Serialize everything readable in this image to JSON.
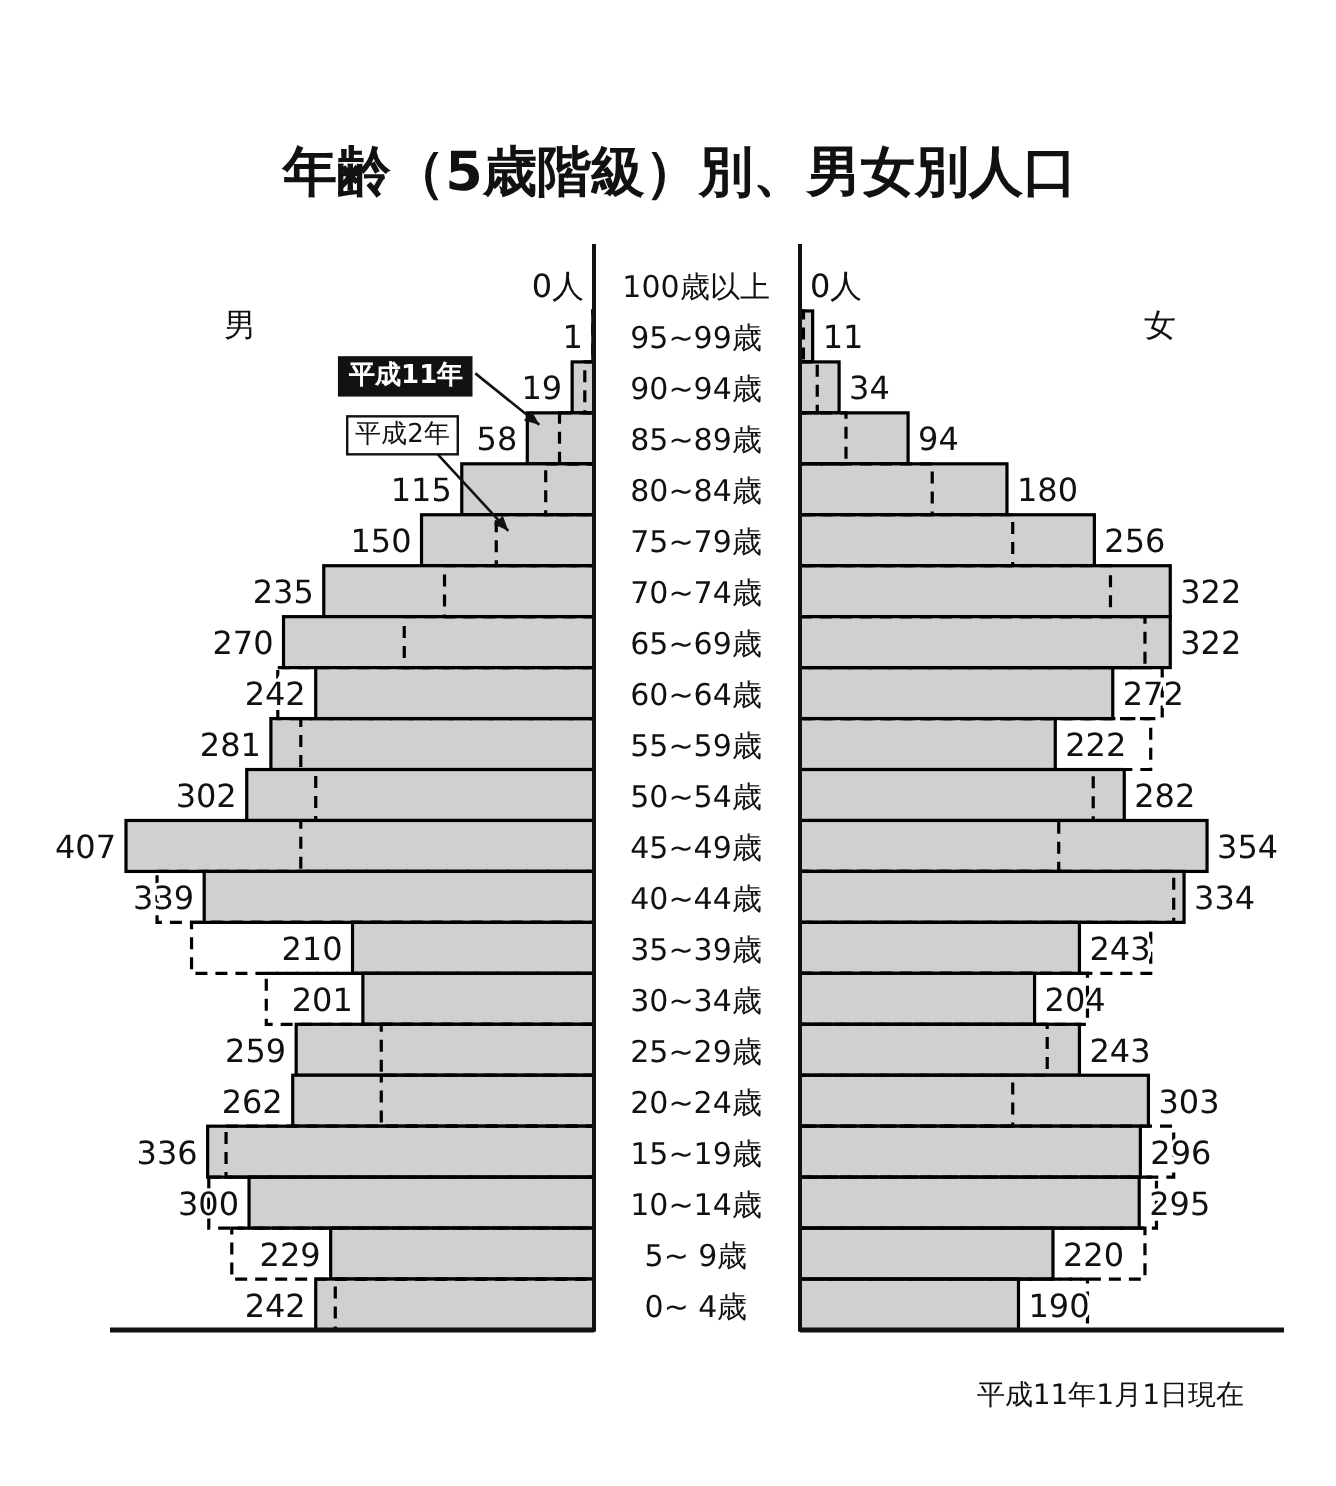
{
  "chart_data": [
    {
      "type": "bar",
      "orientation": "horizontal",
      "title": "年齢（5歳階級）別、男女別人口",
      "categories": [
        "100歳以上",
        "95~99歳",
        "90~94歳",
        "85~89歳",
        "80~84歳",
        "75~79歳",
        "70~74歳",
        "65~69歳",
        "60~64歳",
        "55~59歳",
        "50~54歳",
        "45~49歳",
        "40~44歳",
        "35~39歳",
        "30~34歳",
        "25~29歳",
        "20~24歳",
        "15~19歳",
        "10~14歳",
        "5~ 9歳",
        "0~ 4歳"
      ],
      "series": [
        {
          "name": "平成11年",
          "color": "#d0d0d0",
          "values": [
            0,
            1,
            19,
            58,
            115,
            150,
            235,
            270,
            242,
            281,
            302,
            407,
            339,
            210,
            201,
            259,
            262,
            336,
            300,
            229,
            242
          ],
          "value_labels": [
            "0人",
            "1",
            "19",
            "58",
            "115",
            "150",
            "235",
            "270",
            "242",
            "281",
            "302",
            "407",
            "339",
            "210",
            "201",
            "259",
            "262",
            "336",
            "300",
            "229",
            "242"
          ]
        },
        {
          "name": "平成2年",
          "color": "#000000",
          "line_style": "dashed",
          "values": [
            0,
            1,
            8,
            30,
            42,
            85,
            130,
            165,
            275,
            255,
            242,
            255,
            380,
            350,
            285,
            185,
            185,
            320,
            335,
            315,
            225
          ]
        }
      ],
      "annotations": [
        "男"
      ]
    },
    {
      "type": "bar",
      "orientation": "horizontal",
      "series": [
        {
          "color": "#d0d0d0",
          "values": [
            0,
            11,
            34,
            94,
            180,
            256,
            322,
            322,
            272,
            222,
            282,
            354,
            334,
            243,
            204,
            243,
            303,
            296,
            295,
            220,
            190
          ],
          "value_labels": [
            "0人",
            "11",
            "34",
            "94",
            "180",
            "256",
            "322",
            "322",
            "272",
            "222",
            "282",
            "354",
            "334",
            "243",
            "204",
            "243",
            "303",
            "296",
            "295",
            "220",
            "190"
          ]
        },
        {
          "color": "#000000",
          "line_style": "dashed",
          "values": [
            0,
            3,
            15,
            40,
            115,
            185,
            270,
            300,
            315,
            305,
            255,
            225,
            325,
            305,
            250,
            215,
            185,
            325,
            310,
            300,
            250
          ]
        }
      ],
      "annotations": [
        "女",
        "平成11年1月1日現在"
      ]
    }
  ]
}
